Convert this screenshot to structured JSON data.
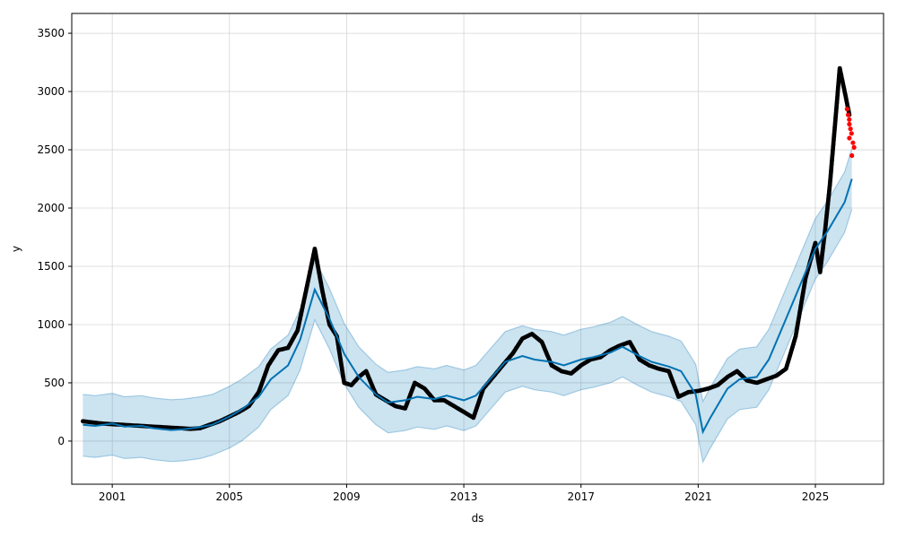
{
  "chart_data": {
    "type": "line",
    "title": "",
    "xlabel": "ds",
    "ylabel": "y",
    "xlim": [
      "1999-08-15",
      "2027-05-01"
    ],
    "ylim": [
      -370,
      3670
    ],
    "grid": true,
    "legend": "none",
    "x_ticks": [
      "2001",
      "2005",
      "2009",
      "2013",
      "2017",
      "2021",
      "2025"
    ],
    "y_ticks": [
      "0",
      "500",
      "1000",
      "1500",
      "2000",
      "2500",
      "3000",
      "3500"
    ],
    "colors": {
      "observed": "#000000",
      "holdout": "#ff0000",
      "forecast": "#0072b2",
      "interval": "#0072b2"
    },
    "series": [
      {
        "name": "observed",
        "kind": "scatter",
        "x": [
          "2000-01",
          "2000-05",
          "2000-09",
          "2001-01",
          "2001-05",
          "2001-09",
          "2002-01",
          "2002-05",
          "2002-09",
          "2003-01",
          "2003-05",
          "2003-09",
          "2004-01",
          "2004-05",
          "2004-09",
          "2005-01",
          "2005-05",
          "2005-09",
          "2006-01",
          "2006-05",
          "2006-09",
          "2007-01",
          "2007-05",
          "2007-09",
          "2007-12",
          "2008-03",
          "2008-06",
          "2008-09",
          "2008-12",
          "2009-03",
          "2009-06",
          "2009-09",
          "2010-01",
          "2010-05",
          "2010-09",
          "2011-01",
          "2011-05",
          "2011-09",
          "2012-01",
          "2012-05",
          "2012-09",
          "2013-01",
          "2013-05",
          "2013-09",
          "2014-01",
          "2014-05",
          "2014-09",
          "2015-01",
          "2015-05",
          "2015-09",
          "2016-01",
          "2016-05",
          "2016-09",
          "2017-01",
          "2017-05",
          "2017-09",
          "2018-01",
          "2018-05",
          "2018-09",
          "2019-01",
          "2019-05",
          "2019-09",
          "2020-01",
          "2020-05",
          "2020-09",
          "2021-01",
          "2021-05",
          "2021-09",
          "2022-01",
          "2022-05",
          "2022-09",
          "2023-01",
          "2023-05",
          "2023-09",
          "2024-01",
          "2024-05",
          "2024-09",
          "2025-01",
          "2025-03",
          "2025-05",
          "2025-07",
          "2025-09",
          "2025-11",
          "2026-01",
          "2026-03"
        ],
        "y": [
          170,
          160,
          150,
          145,
          140,
          135,
          130,
          125,
          120,
          115,
          110,
          105,
          110,
          140,
          170,
          210,
          250,
          300,
          420,
          650,
          780,
          800,
          950,
          1350,
          1650,
          1300,
          1000,
          900,
          500,
          480,
          550,
          600,
          400,
          350,
          300,
          280,
          500,
          450,
          350,
          350,
          300,
          250,
          200,
          450,
          550,
          650,
          750,
          880,
          920,
          850,
          650,
          600,
          580,
          650,
          700,
          720,
          780,
          820,
          850,
          700,
          650,
          620,
          600,
          380,
          420,
          430,
          450,
          480,
          550,
          600,
          520,
          500,
          530,
          560,
          620,
          900,
          1400,
          1700,
          1450,
          1800,
          2200,
          2700,
          3200,
          3000,
          2800
        ]
      },
      {
        "name": "holdout",
        "kind": "scatter",
        "x": [
          "2026-02",
          "2026-02",
          "2026-02",
          "2026-03",
          "2026-03",
          "2026-03",
          "2026-03",
          "2026-04",
          "2026-04",
          "2026-04"
        ],
        "y": [
          2850,
          2800,
          2760,
          2720,
          2680,
          2640,
          2600,
          2560,
          2520,
          2450
        ]
      },
      {
        "name": "yhat",
        "kind": "line",
        "x": [
          "2000-01",
          "2000-06",
          "2001-01",
          "2001-06",
          "2002-01",
          "2002-06",
          "2003-01",
          "2003-06",
          "2004-01",
          "2004-06",
          "2005-01",
          "2005-06",
          "2006-01",
          "2006-06",
          "2007-01",
          "2007-06",
          "2007-12",
          "2008-06",
          "2008-12",
          "2009-06",
          "2010-01",
          "2010-06",
          "2011-01",
          "2011-06",
          "2012-01",
          "2012-06",
          "2013-01",
          "2013-06",
          "2014-01",
          "2014-06",
          "2015-01",
          "2015-06",
          "2016-01",
          "2016-06",
          "2017-01",
          "2017-06",
          "2018-01",
          "2018-06",
          "2019-01",
          "2019-06",
          "2020-01",
          "2020-06",
          "2020-12",
          "2021-03",
          "2021-06",
          "2022-01",
          "2022-06",
          "2023-01",
          "2023-06",
          "2024-01",
          "2024-06",
          "2025-01",
          "2025-06",
          "2026-01",
          "2026-04"
        ],
        "y": [
          140,
          130,
          150,
          125,
          130,
          110,
          95,
          100,
          120,
          140,
          210,
          270,
          380,
          530,
          650,
          870,
          1300,
          1050,
          750,
          550,
          400,
          330,
          350,
          380,
          360,
          390,
          350,
          390,
          560,
          680,
          730,
          700,
          680,
          650,
          700,
          720,
          760,
          810,
          730,
          680,
          640,
          600,
          400,
          80,
          200,
          450,
          530,
          550,
          700,
          1050,
          1300,
          1650,
          1800,
          2050,
          2250
        ]
      },
      {
        "name": "yhat_lower",
        "kind": "line",
        "x": [
          "2000-01",
          "2000-06",
          "2001-01",
          "2001-06",
          "2002-01",
          "2002-06",
          "2003-01",
          "2003-06",
          "2004-01",
          "2004-06",
          "2005-01",
          "2005-06",
          "2006-01",
          "2006-06",
          "2007-01",
          "2007-06",
          "2007-12",
          "2008-06",
          "2008-12",
          "2009-06",
          "2010-01",
          "2010-06",
          "2011-01",
          "2011-06",
          "2012-01",
          "2012-06",
          "2013-01",
          "2013-06",
          "2014-01",
          "2014-06",
          "2015-01",
          "2015-06",
          "2016-01",
          "2016-06",
          "2017-01",
          "2017-06",
          "2018-01",
          "2018-06",
          "2019-01",
          "2019-06",
          "2020-01",
          "2020-06",
          "2020-12",
          "2021-03",
          "2021-06",
          "2022-01",
          "2022-06",
          "2023-01",
          "2023-06",
          "2024-01",
          "2024-06",
          "2025-01",
          "2025-06",
          "2026-01",
          "2026-04"
        ],
        "y": [
          -130,
          -140,
          -120,
          -150,
          -140,
          -160,
          -175,
          -170,
          -150,
          -120,
          -60,
          0,
          120,
          270,
          390,
          610,
          1040,
          790,
          490,
          290,
          140,
          70,
          90,
          120,
          100,
          130,
          90,
          130,
          300,
          420,
          470,
          440,
          420,
          390,
          440,
          460,
          500,
          550,
          470,
          420,
          380,
          340,
          140,
          -180,
          -60,
          190,
          270,
          290,
          440,
          790,
          1040,
          1390,
          1540,
          1790,
          1990
        ]
      },
      {
        "name": "yhat_upper",
        "kind": "line",
        "x": [
          "2000-01",
          "2000-06",
          "2001-01",
          "2001-06",
          "2002-01",
          "2002-06",
          "2003-01",
          "2003-06",
          "2004-01",
          "2004-06",
          "2005-01",
          "2005-06",
          "2006-01",
          "2006-06",
          "2007-01",
          "2007-06",
          "2007-12",
          "2008-06",
          "2008-12",
          "2009-06",
          "2010-01",
          "2010-06",
          "2011-01",
          "2011-06",
          "2012-01",
          "2012-06",
          "2013-01",
          "2013-06",
          "2014-01",
          "2014-06",
          "2015-01",
          "2015-06",
          "2016-01",
          "2016-06",
          "2017-01",
          "2017-06",
          "2018-01",
          "2018-06",
          "2019-01",
          "2019-06",
          "2020-01",
          "2020-06",
          "2020-12",
          "2021-03",
          "2021-06",
          "2022-01",
          "2022-06",
          "2023-01",
          "2023-06",
          "2024-01",
          "2024-06",
          "2025-01",
          "2025-06",
          "2026-01",
          "2026-04"
        ],
        "y": [
          400,
          390,
          410,
          380,
          390,
          370,
          355,
          360,
          380,
          400,
          470,
          530,
          640,
          790,
          910,
          1130,
          1560,
          1310,
          1010,
          810,
          660,
          590,
          610,
          640,
          620,
          650,
          610,
          650,
          820,
          940,
          990,
          960,
          940,
          910,
          960,
          980,
          1020,
          1070,
          990,
          940,
          900,
          860,
          660,
          340,
          460,
          710,
          790,
          810,
          960,
          1310,
          1560,
          1910,
          2060,
          2310,
          2510
        ]
      }
    ]
  }
}
